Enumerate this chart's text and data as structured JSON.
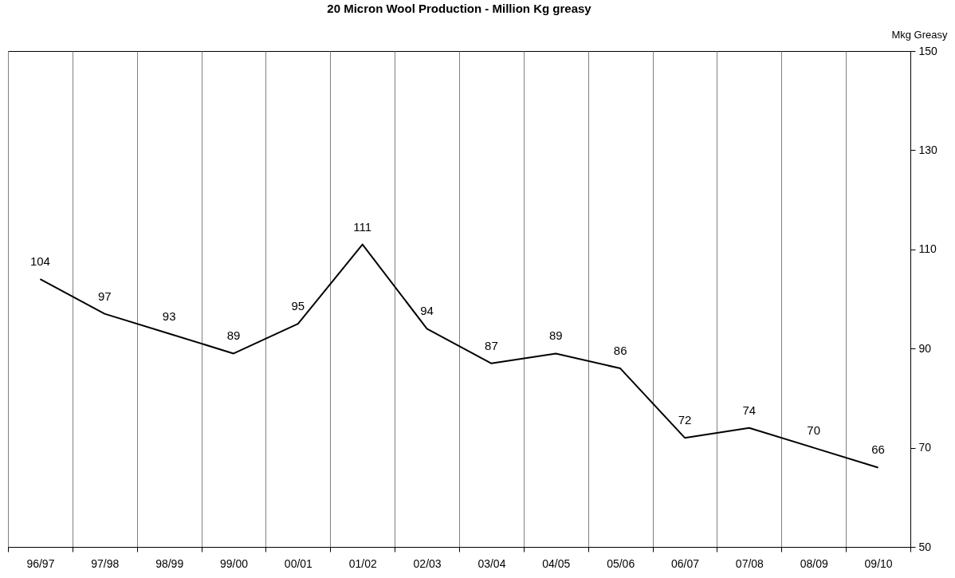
{
  "chart_data": {
    "type": "line",
    "title": "20 Micron Wool Production - Million Kg greasy",
    "ylabel": "Mkg Greasy",
    "categories": [
      "96/97",
      "97/98",
      "98/99",
      "99/00",
      "00/01",
      "01/02",
      "02/03",
      "03/04",
      "04/05",
      "05/06",
      "06/07",
      "07/08",
      "08/09",
      "09/10"
    ],
    "series": [
      {
        "color": "#000000",
        "values": [
          104,
          97,
          93,
          89,
          95,
          111,
          94,
          87,
          89,
          86,
          72,
          74,
          70,
          66
        ]
      }
    ],
    "ylim": [
      50,
      150
    ],
    "yticks": [
      50,
      70,
      90,
      110,
      130,
      150
    ],
    "grid": "x",
    "data_labels": true,
    "marker": "none",
    "line_style": "solid"
  }
}
